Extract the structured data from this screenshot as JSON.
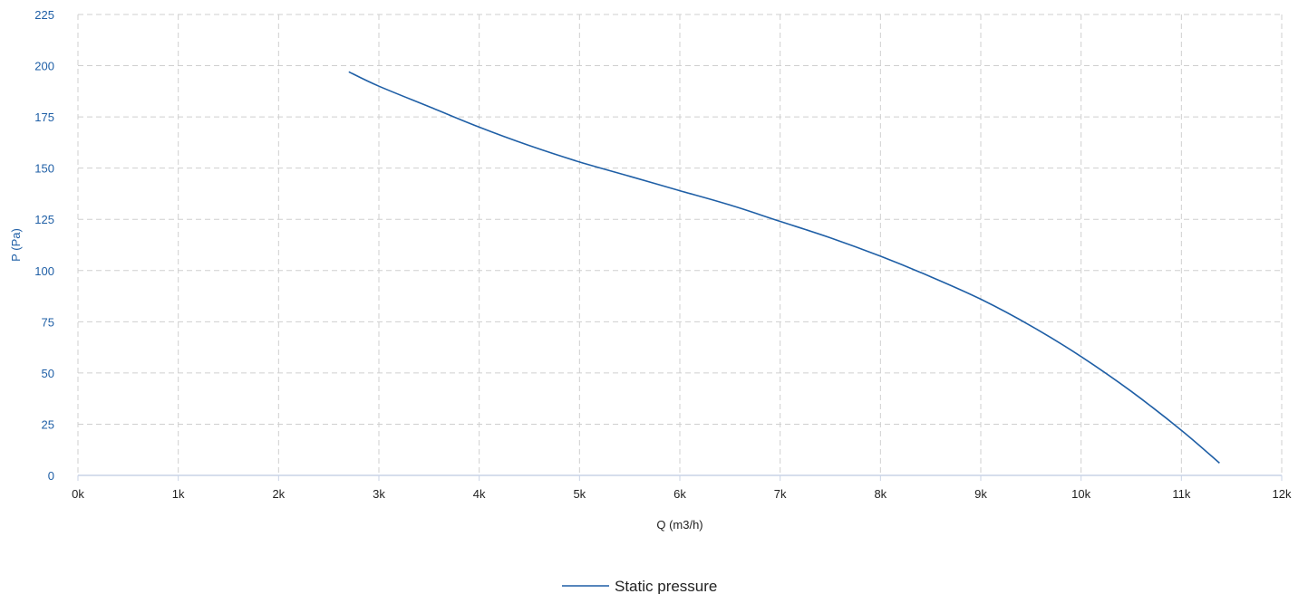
{
  "chart_data": {
    "type": "line",
    "title": "",
    "xlabel": "Q (m3/h)",
    "ylabel": "P (Pa)",
    "xlim": [
      0,
      12000
    ],
    "ylim": [
      0,
      225
    ],
    "x_ticks": [
      0,
      1000,
      2000,
      3000,
      4000,
      5000,
      6000,
      7000,
      8000,
      9000,
      10000,
      11000,
      12000
    ],
    "x_tick_labels": [
      "0k",
      "1k",
      "2k",
      "3k",
      "4k",
      "5k",
      "6k",
      "7k",
      "8k",
      "9k",
      "10k",
      "11k",
      "12k"
    ],
    "y_ticks": [
      0,
      25,
      50,
      75,
      100,
      125,
      150,
      175,
      200,
      225
    ],
    "y_tick_labels": [
      "0",
      "25",
      "50",
      "75",
      "100",
      "125",
      "150",
      "175",
      "200",
      "225"
    ],
    "grid": true,
    "legend_position": "bottom-center",
    "series": [
      {
        "name": "Static pressure",
        "color": "#1f5fa6",
        "x": [
          2700,
          3000,
          3500,
          4000,
          4500,
          5000,
          5500,
          6000,
          6500,
          7000,
          7500,
          8000,
          8500,
          9000,
          9500,
          10000,
          10500,
          11000,
          11380
        ],
        "y": [
          197,
          190,
          180,
          170,
          161,
          153,
          146,
          139,
          132,
          124,
          116,
          107,
          97,
          86,
          73,
          58,
          41,
          22,
          6
        ]
      }
    ]
  }
}
